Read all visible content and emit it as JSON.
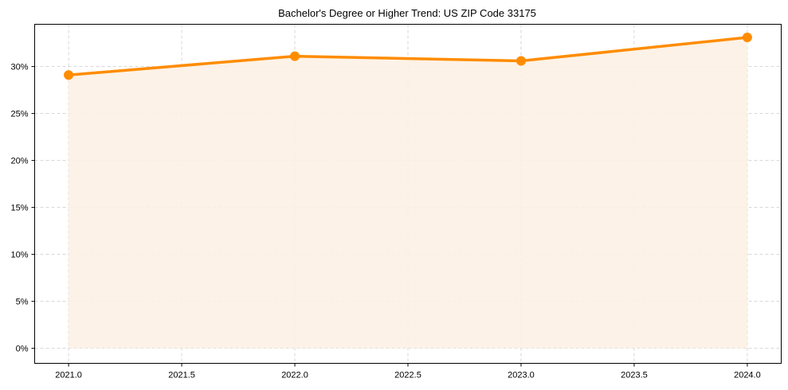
{
  "chart_data": {
    "type": "line",
    "title": "Bachelor's Degree or Higher Trend: US ZIP Code 33175",
    "xlabel": "",
    "ylabel": "",
    "x": [
      2021,
      2022,
      2023,
      2024
    ],
    "series": [
      {
        "name": "Bachelor's Degree or Higher",
        "values": [
          29.1,
          31.1,
          30.6,
          33.1
        ],
        "unit": "%"
      }
    ],
    "x_ticks": [
      "2021.0",
      "2021.5",
      "2022.0",
      "2022.5",
      "2023.0",
      "2023.5",
      "2024.0"
    ],
    "y_ticks": [
      "0%",
      "5%",
      "10%",
      "15%",
      "20%",
      "25%",
      "30%"
    ],
    "xlim": [
      2020.85,
      2024.15
    ],
    "ylim": [
      -1.6,
      34.5
    ],
    "grid": true,
    "legend": false,
    "fill_under_line": true,
    "colors": {
      "line": "#FF8C00",
      "fill": "#FDF1E4",
      "grid": "#CCCCCC"
    }
  }
}
